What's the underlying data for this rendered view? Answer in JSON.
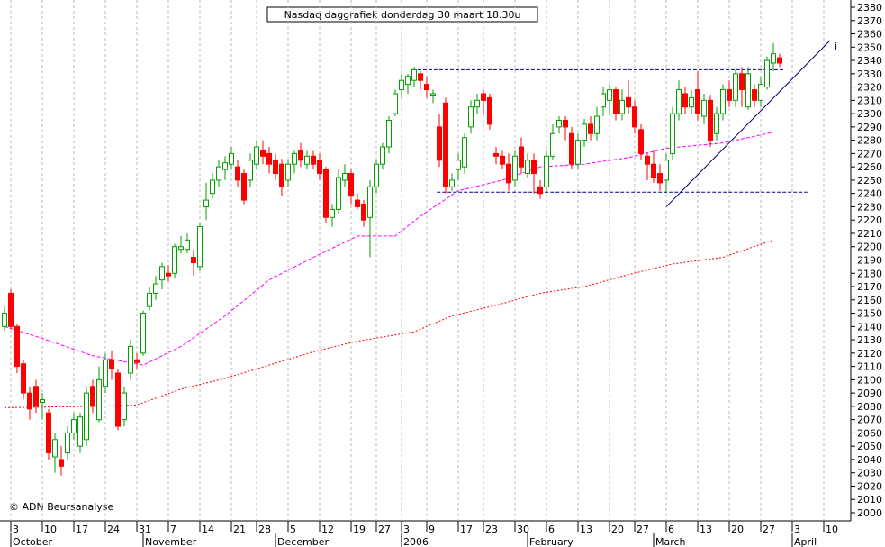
{
  "chart_data": {
    "type": "candlestick",
    "title": "Nasdaq daggrafiek donderdag 30 maart 18.30u",
    "annotations": [
      "i",
      "© ADN Beursanalyse"
    ],
    "up_color": "#00a000",
    "down_color": "#ff0000",
    "ylim": [
      2000,
      2380
    ],
    "yticks": [
      2000,
      2010,
      2020,
      2030,
      2040,
      2050,
      2060,
      2070,
      2080,
      2090,
      2100,
      2110,
      2120,
      2130,
      2140,
      2150,
      2160,
      2170,
      2180,
      2190,
      2200,
      2210,
      2220,
      2230,
      2240,
      2250,
      2260,
      2270,
      2280,
      2290,
      2300,
      2310,
      2320,
      2330,
      2340,
      2350,
      2360,
      2370,
      2380
    ],
    "xticks": [
      {
        "value": 1,
        "label": "3"
      },
      {
        "value": 6,
        "label": "10"
      },
      {
        "value": 11,
        "label": "17"
      },
      {
        "value": 16,
        "label": "24"
      },
      {
        "value": 21,
        "label": "31"
      },
      {
        "value": 26,
        "label": "7"
      },
      {
        "value": 31,
        "label": "14"
      },
      {
        "value": 36,
        "label": "21"
      },
      {
        "value": 40,
        "label": "28"
      },
      {
        "value": 45,
        "label": "5"
      },
      {
        "value": 50,
        "label": "12"
      },
      {
        "value": 55,
        "label": "19"
      },
      {
        "value": 59,
        "label": "27"
      },
      {
        "value": 63,
        "label": "3"
      },
      {
        "value": 67,
        "label": "9"
      },
      {
        "value": 72,
        "label": "17"
      },
      {
        "value": 76,
        "label": "23"
      },
      {
        "value": 81,
        "label": "30"
      },
      {
        "value": 86,
        "label": "6"
      },
      {
        "value": 91,
        "label": "13"
      },
      {
        "value": 96,
        "label": "20"
      },
      {
        "value": 100,
        "label": "27"
      },
      {
        "value": 105,
        "label": "6"
      },
      {
        "value": 110,
        "label": "13"
      },
      {
        "value": 115,
        "label": "20"
      },
      {
        "value": 120,
        "label": "27"
      },
      {
        "value": 125,
        "label": "3"
      },
      {
        "value": 130,
        "label": "10"
      }
    ],
    "months": [
      {
        "value": 1,
        "label": "October"
      },
      {
        "value": 22,
        "label": "November"
      },
      {
        "value": 43,
        "label": "December"
      },
      {
        "value": 63,
        "label": "2006"
      },
      {
        "value": 83,
        "label": "February"
      },
      {
        "value": 103,
        "label": "March"
      },
      {
        "value": 125,
        "label": "April"
      }
    ],
    "grid": true,
    "ohlc": [
      [
        2140,
        2155,
        2137,
        2150
      ],
      [
        2165,
        2168,
        2138,
        2140
      ],
      [
        2140,
        2142,
        2105,
        2110
      ],
      [
        2112,
        2115,
        2085,
        2090
      ],
      [
        2090,
        2095,
        2070,
        2078
      ],
      [
        2095,
        2100,
        2075,
        2080
      ],
      [
        2083,
        2090,
        2070,
        2085
      ],
      [
        2075,
        2078,
        2040,
        2045
      ],
      [
        2042,
        2060,
        2030,
        2055
      ],
      [
        2040,
        2050,
        2028,
        2035
      ],
      [
        2045,
        2065,
        2040,
        2060
      ],
      [
        2060,
        2075,
        2055,
        2070
      ],
      [
        2050,
        2075,
        2045,
        2072
      ],
      [
        2055,
        2095,
        2050,
        2090
      ],
      [
        2095,
        2100,
        2075,
        2080
      ],
      [
        2070,
        2110,
        2068,
        2100
      ],
      [
        2095,
        2120,
        2090,
        2115
      ],
      [
        2115,
        2122,
        2100,
        2108
      ],
      [
        2105,
        2108,
        2062,
        2065
      ],
      [
        2070,
        2095,
        2065,
        2090
      ],
      [
        2105,
        2130,
        2100,
        2125
      ],
      [
        2115,
        2120,
        2108,
        2113
      ],
      [
        2120,
        2152,
        2118,
        2150
      ],
      [
        2155,
        2170,
        2152,
        2165
      ],
      [
        2165,
        2178,
        2160,
        2172
      ],
      [
        2175,
        2188,
        2168,
        2185
      ],
      [
        2180,
        2186,
        2174,
        2178
      ],
      [
        2180,
        2202,
        2176,
        2200
      ],
      [
        2198,
        2208,
        2195,
        2200
      ],
      [
        2198,
        2210,
        2195,
        2205
      ],
      [
        2192,
        2198,
        2178,
        2188
      ],
      [
        2185,
        2218,
        2182,
        2215
      ],
      [
        2230,
        2248,
        2220,
        2235
      ],
      [
        2240,
        2255,
        2236,
        2250
      ],
      [
        2250,
        2265,
        2245,
        2260
      ],
      [
        2258,
        2268,
        2250,
        2263
      ],
      [
        2262,
        2275,
        2258,
        2270
      ],
      [
        2260,
        2265,
        2245,
        2250
      ],
      [
        2255,
        2258,
        2232,
        2235
      ],
      [
        2250,
        2270,
        2245,
        2265
      ],
      [
        2262,
        2280,
        2258,
        2275
      ],
      [
        2272,
        2280,
        2262,
        2268
      ],
      [
        2270,
        2275,
        2255,
        2262
      ],
      [
        2265,
        2270,
        2250,
        2255
      ],
      [
        2262,
        2266,
        2238,
        2245
      ],
      [
        2250,
        2265,
        2245,
        2262
      ],
      [
        2262,
        2272,
        2255,
        2270
      ],
      [
        2272,
        2278,
        2260,
        2265
      ],
      [
        2262,
        2272,
        2258,
        2268
      ],
      [
        2268,
        2272,
        2258,
        2262
      ],
      [
        2265,
        2270,
        2250,
        2255
      ],
      [
        2258,
        2260,
        2218,
        2222
      ],
      [
        2222,
        2232,
        2215,
        2228
      ],
      [
        2228,
        2258,
        2225,
        2252
      ],
      [
        2250,
        2262,
        2245,
        2255
      ],
      [
        2255,
        2258,
        2232,
        2238
      ],
      [
        2235,
        2240,
        2228,
        2230
      ],
      [
        2232,
        2235,
        2215,
        2220
      ],
      [
        2222,
        2250,
        2192,
        2245
      ],
      [
        2245,
        2265,
        2240,
        2262
      ],
      [
        2262,
        2278,
        2258,
        2275
      ],
      [
        2275,
        2298,
        2270,
        2295
      ],
      [
        2300,
        2318,
        2298,
        2315
      ],
      [
        2318,
        2330,
        2312,
        2325
      ],
      [
        2322,
        2330,
        2315,
        2328
      ],
      [
        2325,
        2335,
        2320,
        2333
      ],
      [
        2330,
        2332,
        2318,
        2325
      ],
      [
        2322,
        2328,
        2312,
        2318
      ],
      [
        2314,
        2318,
        2308,
        2315
      ],
      [
        2290,
        2300,
        2260,
        2265
      ],
      [
        2308,
        2312,
        2240,
        2245
      ],
      [
        2245,
        2255,
        2242,
        2250
      ],
      [
        2258,
        2270,
        2250,
        2265
      ],
      [
        2260,
        2285,
        2255,
        2282
      ],
      [
        2290,
        2310,
        2285,
        2305
      ],
      [
        2305,
        2315,
        2300,
        2310
      ],
      [
        2315,
        2318,
        2300,
        2310
      ],
      [
        2312,
        2315,
        2288,
        2292
      ],
      [
        2270,
        2275,
        2262,
        2268
      ],
      [
        2268,
        2272,
        2258,
        2262
      ],
      [
        2262,
        2270,
        2242,
        2248
      ],
      [
        2250,
        2272,
        2245,
        2268
      ],
      [
        2275,
        2282,
        2255,
        2260
      ],
      [
        2255,
        2270,
        2252,
        2265
      ],
      [
        2265,
        2270,
        2240,
        2255
      ],
      [
        2245,
        2250,
        2236,
        2240
      ],
      [
        2245,
        2272,
        2240,
        2268
      ],
      [
        2268,
        2292,
        2265,
        2285
      ],
      [
        2290,
        2298,
        2285,
        2295
      ],
      [
        2295,
        2298,
        2280,
        2290
      ],
      [
        2285,
        2290,
        2258,
        2262
      ],
      [
        2262,
        2285,
        2258,
        2280
      ],
      [
        2280,
        2296,
        2275,
        2292
      ],
      [
        2292,
        2298,
        2280,
        2285
      ],
      [
        2285,
        2305,
        2280,
        2298
      ],
      [
        2305,
        2320,
        2298,
        2315
      ],
      [
        2310,
        2322,
        2300,
        2318
      ],
      [
        2318,
        2320,
        2295,
        2300
      ],
      [
        2300,
        2318,
        2295,
        2310
      ],
      [
        2312,
        2325,
        2300,
        2305
      ],
      [
        2305,
        2310,
        2285,
        2290
      ],
      [
        2288,
        2292,
        2265,
        2270
      ],
      [
        2268,
        2270,
        2250,
        2262
      ],
      [
        2262,
        2272,
        2248,
        2252
      ],
      [
        2255,
        2262,
        2242,
        2248
      ],
      [
        2250,
        2270,
        2240,
        2265
      ],
      [
        2270,
        2305,
        2265,
        2300
      ],
      [
        2300,
        2325,
        2295,
        2318
      ],
      [
        2315,
        2320,
        2300,
        2305
      ],
      [
        2305,
        2318,
        2300,
        2312
      ],
      [
        2318,
        2332,
        2295,
        2300
      ],
      [
        2298,
        2315,
        2292,
        2310
      ],
      [
        2310,
        2314,
        2275,
        2280
      ],
      [
        2285,
        2305,
        2280,
        2300
      ],
      [
        2300,
        2322,
        2295,
        2318
      ],
      [
        2318,
        2325,
        2305,
        2310
      ],
      [
        2310,
        2333,
        2305,
        2330
      ],
      [
        2330,
        2335,
        2305,
        2318
      ],
      [
        2305,
        2335,
        2303,
        2330
      ],
      [
        2318,
        2322,
        2305,
        2310
      ],
      [
        2310,
        2328,
        2305,
        2322
      ],
      [
        2320,
        2343,
        2318,
        2340
      ],
      [
        2338,
        2353,
        2332,
        2345
      ],
      [
        2342,
        2345,
        2335,
        2338
      ]
    ],
    "lines": [
      {
        "color": "#ff00ff",
        "style": "dashed",
        "x": [
          0,
          6,
          14,
          22,
          28,
          35,
          42,
          49,
          56,
          62,
          66,
          72,
          79,
          85,
          92,
          99,
          105,
          114,
          122
        ],
        "values": [
          2140,
          2131,
          2118,
          2111,
          2125,
          2148,
          2175,
          2192,
          2208,
          2208,
          2223,
          2242,
          2250,
          2260,
          2262,
          2267,
          2274,
          2278,
          2286
        ]
      },
      {
        "color": "#ff0000",
        "style": "dotted",
        "x": [
          0,
          14,
          21,
          28,
          35,
          42,
          49,
          56,
          65,
          71,
          78,
          85,
          92,
          99,
          106,
          114,
          122
        ],
        "values": [
          2079,
          2080,
          2081,
          2093,
          2101,
          2111,
          2121,
          2129,
          2136,
          2148,
          2156,
          2165,
          2170,
          2179,
          2187,
          2192,
          2205
        ]
      },
      {
        "color": "#000080",
        "style": "dashed",
        "x": [
          64.7,
          123.6
        ],
        "values": [
          2333,
          2333
        ]
      },
      {
        "color": "#000080",
        "style": "dashed",
        "x": [
          68.6,
          127.4
        ],
        "values": [
          2241,
          2241
        ]
      },
      {
        "color": "#000080",
        "style": "solid",
        "x": [
          105,
          131
        ],
        "values": [
          2230,
          2355
        ]
      }
    ]
  }
}
